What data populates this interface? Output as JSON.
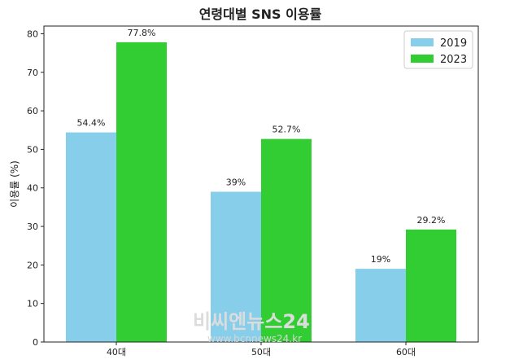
{
  "chart_data": {
    "type": "bar",
    "title": "연령대별 SNS 이용률",
    "xlabel": "",
    "ylabel": "이용률 (%)",
    "categories": [
      "40대",
      "50대",
      "60대"
    ],
    "series": [
      {
        "name": "2019",
        "values": [
          54.4,
          39,
          19
        ],
        "labels": [
          "54.4%",
          "39%",
          "19%"
        ],
        "color": "#87ceeb"
      },
      {
        "name": "2023",
        "values": [
          77.8,
          52.7,
          29.2
        ],
        "labels": [
          "77.8%",
          "52.7%",
          "29.2%"
        ],
        "color": "#32cd32"
      }
    ],
    "ylim": [
      0,
      82
    ],
    "yticks": [
      0,
      10,
      20,
      30,
      40,
      50,
      60,
      70,
      80
    ],
    "legend": "top-right",
    "grid": false
  },
  "watermark": {
    "line1": "비씨엔뉴스24",
    "line2": "www.bcnnews24.kr"
  }
}
